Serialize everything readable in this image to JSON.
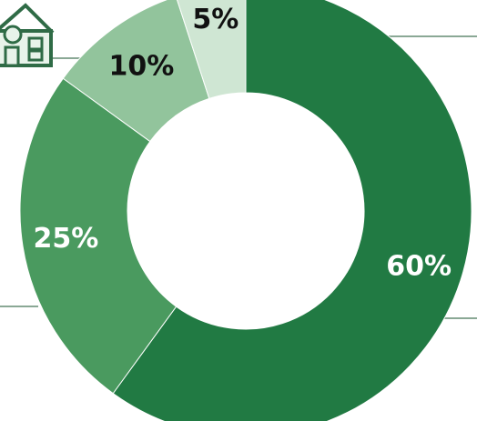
{
  "icon": "school-building-icon",
  "chart_data": {
    "type": "pie",
    "style": "donut",
    "title": "",
    "start_angle_deg": 0,
    "direction": "clockwise",
    "slices": [
      {
        "label": "60%",
        "value": 60,
        "color": "#217a43",
        "label_color": "#ffffff"
      },
      {
        "label": "25%",
        "value": 25,
        "color": "#4a9a5f",
        "label_color": "#ffffff"
      },
      {
        "label": "10%",
        "value": 10,
        "color": "#92c49c",
        "label_color": "#111111"
      },
      {
        "label": "5%",
        "value": 5,
        "color": "#cfe6d3",
        "label_color": "#111111"
      }
    ]
  },
  "colors": {
    "leader_line": "#8aa895",
    "icon_stroke": "#2f6b46",
    "icon_fill": "#e8f3ea"
  }
}
